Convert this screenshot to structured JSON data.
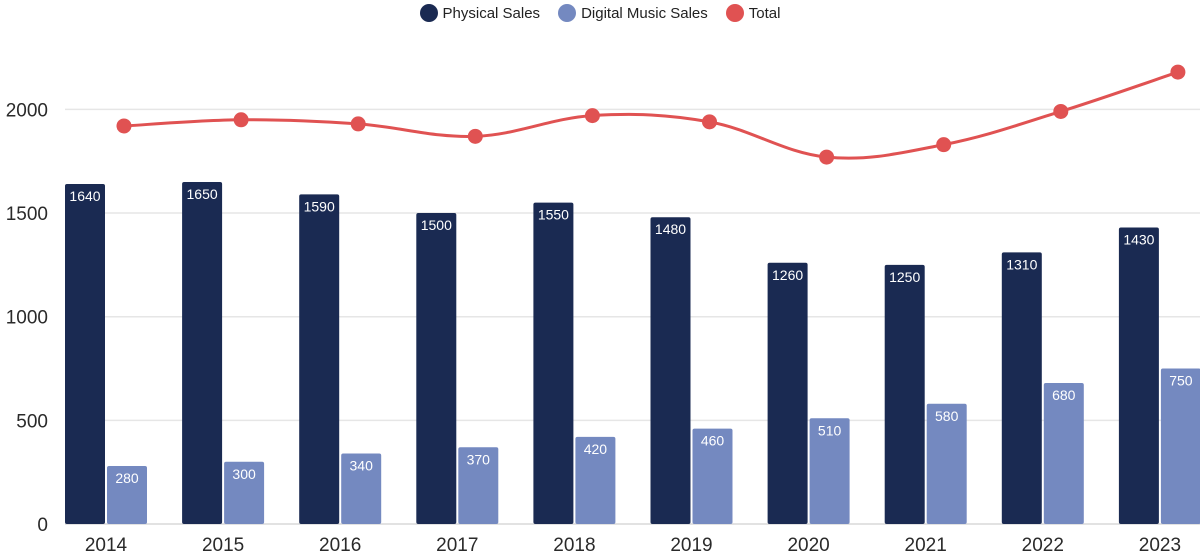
{
  "chart_data": {
    "type": "bar",
    "title": "",
    "xlabel": "",
    "ylabel": "",
    "ylim": [
      0,
      2300
    ],
    "yticks": [
      0,
      500,
      1000,
      1500,
      2000
    ],
    "grid": true,
    "legend_position": "top-center",
    "categories": [
      "2014",
      "2015",
      "2016",
      "2017",
      "2018",
      "2019",
      "2020",
      "2021",
      "2022",
      "2023"
    ],
    "series": [
      {
        "name": "Physical Sales",
        "type": "bar",
        "color": "#1a2a52",
        "values": [
          1640,
          1650,
          1590,
          1500,
          1550,
          1480,
          1260,
          1250,
          1310,
          1430
        ]
      },
      {
        "name": "Digital Music Sales",
        "type": "bar",
        "color": "#7489c0",
        "values": [
          280,
          300,
          340,
          370,
          420,
          460,
          510,
          580,
          680,
          750
        ]
      },
      {
        "name": "Total",
        "type": "line",
        "color": "#e05252",
        "values": [
          1920,
          1950,
          1930,
          1870,
          1970,
          1940,
          1770,
          1830,
          1990,
          2180
        ]
      }
    ]
  },
  "legend": {
    "items": [
      {
        "label": "Physical Sales",
        "color": "#1a2a52"
      },
      {
        "label": "Digital Music Sales",
        "color": "#7489c0"
      },
      {
        "label": "Total",
        "color": "#e05252"
      }
    ]
  }
}
